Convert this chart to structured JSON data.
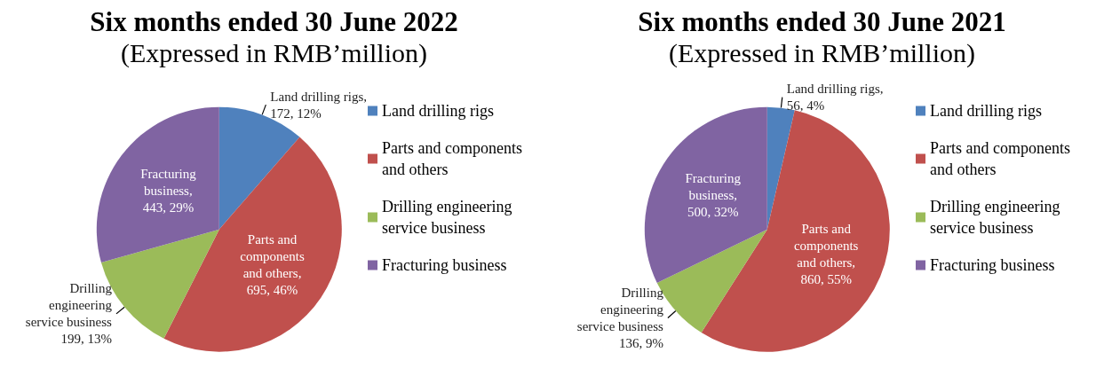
{
  "chart_data": [
    {
      "type": "pie",
      "title": "Six months ended 30 June 2022",
      "subtitle": "(Expressed in RMB’million)",
      "categories": [
        "Land drilling rigs",
        "Parts and components and others",
        "Drilling engineering service business",
        "Fracturing business"
      ],
      "values": [
        172,
        695,
        199,
        443
      ],
      "colors": [
        "#4f81bd",
        "#c0504d",
        "#9bbb59",
        "#8064a2"
      ],
      "value_labels": [
        "Land drilling rigs,\n172, 12%",
        "Parts and\ncomponents\nand others,\n695, 46%",
        "Drilling\nengineering\nservice business\n199, 13%",
        "Fracturing\nbusiness,\n443, 29%"
      ],
      "legend": "right"
    },
    {
      "type": "pie",
      "title": "Six months ended 30 June 2021",
      "subtitle": "(Expressed in RMB’million)",
      "categories": [
        "Land drilling rigs",
        "Parts and components and others",
        "Drilling engineering service business",
        "Fracturing business"
      ],
      "values": [
        56,
        860,
        136,
        500
      ],
      "colors": [
        "#4f81bd",
        "#c0504d",
        "#9bbb59",
        "#8064a2"
      ],
      "value_labels": [
        "Land drilling rigs,\n56, 4%",
        "Parts and\ncomponents\nand others,\n860, 55%",
        "Drilling\nengineering\nservice business\n136, 9%",
        "Fracturing\nbusiness,\n500, 32%"
      ],
      "legend": "right"
    }
  ]
}
